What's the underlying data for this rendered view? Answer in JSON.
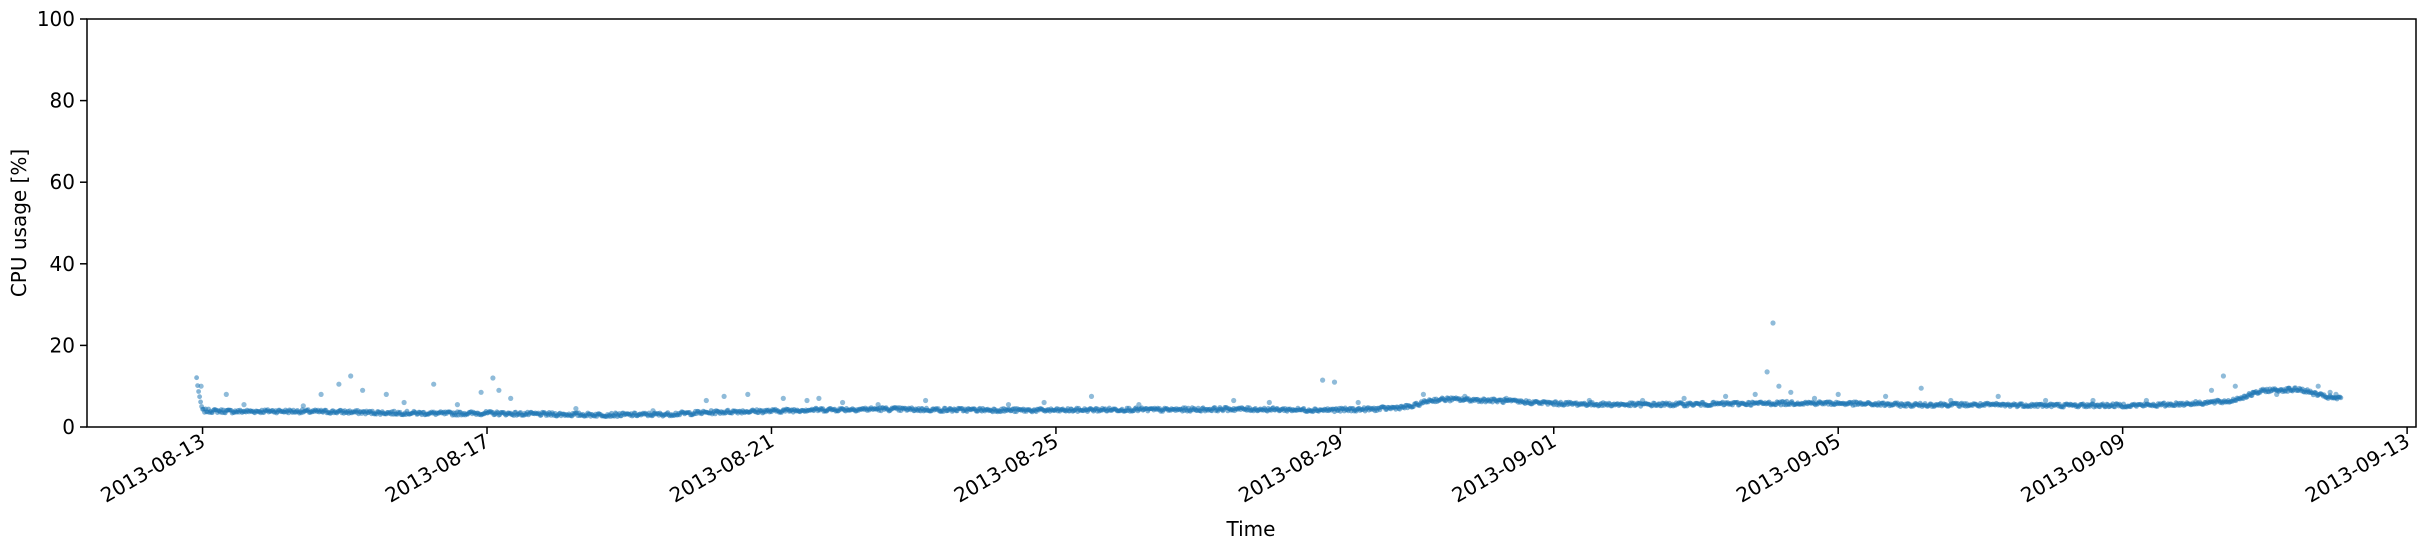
{
  "chart_data": {
    "type": "scatter",
    "title": "",
    "xlabel": "Time",
    "ylabel": "CPU usage [%]",
    "x_axis": {
      "kind": "date",
      "range": [
        "2013-08-11",
        "2013-09-13"
      ],
      "ticks": [
        "2013-08-13",
        "2013-08-17",
        "2013-08-21",
        "2013-08-25",
        "2013-08-29",
        "2013-09-01",
        "2013-09-05",
        "2013-09-09",
        "2013-09-13"
      ]
    },
    "y_axis": {
      "range": [
        0,
        100
      ],
      "ticks": [
        0,
        20,
        40,
        60,
        80,
        100
      ]
    },
    "grid": false,
    "legend": "none",
    "colors": {
      "series": "#1f77b4",
      "axis": "#000000"
    },
    "series": [
      {
        "baseline": [
          [
            "2013-08-12 22:00",
            12.0
          ],
          [
            "2013-08-12 23:00",
            7.0
          ],
          [
            "2013-08-13 00:00",
            4.0
          ],
          [
            "2013-08-13 12:00",
            3.8
          ],
          [
            "2013-08-14 00:00",
            3.9
          ],
          [
            "2013-08-14 12:00",
            3.8
          ],
          [
            "2013-08-15 00:00",
            3.7
          ],
          [
            "2013-08-15 12:00",
            3.5
          ],
          [
            "2013-08-16 00:00",
            3.4
          ],
          [
            "2013-08-16 12:00",
            3.3
          ],
          [
            "2013-08-17 00:00",
            3.4
          ],
          [
            "2013-08-17 12:00",
            3.2
          ],
          [
            "2013-08-18 00:00",
            3.1
          ],
          [
            "2013-08-18 12:00",
            3.0
          ],
          [
            "2013-08-19 00:00",
            3.0
          ],
          [
            "2013-08-19 12:00",
            3.1
          ],
          [
            "2013-08-20 00:00",
            3.5
          ],
          [
            "2013-08-20 12:00",
            3.8
          ],
          [
            "2013-08-21 00:00",
            3.9
          ],
          [
            "2013-08-21 12:00",
            4.2
          ],
          [
            "2013-08-22 00:00",
            4.3
          ],
          [
            "2013-08-22 12:00",
            4.4
          ],
          [
            "2013-08-23 00:00",
            4.3
          ],
          [
            "2013-08-23 12:00",
            4.2
          ],
          [
            "2013-08-24 00:00",
            4.2
          ],
          [
            "2013-08-24 12:00",
            4.1
          ],
          [
            "2013-08-25 00:00",
            4.1
          ],
          [
            "2013-08-25 12:00",
            4.2
          ],
          [
            "2013-08-26 00:00",
            4.3
          ],
          [
            "2013-08-26 12:00",
            4.2
          ],
          [
            "2013-08-27 00:00",
            4.3
          ],
          [
            "2013-08-27 12:00",
            4.4
          ],
          [
            "2013-08-28 00:00",
            4.3
          ],
          [
            "2013-08-28 12:00",
            4.2
          ],
          [
            "2013-08-29 00:00",
            4.2
          ],
          [
            "2013-08-29 12:00",
            4.4
          ],
          [
            "2013-08-30 00:00",
            5.0
          ],
          [
            "2013-08-30 06:00",
            6.5
          ],
          [
            "2013-08-30 12:00",
            6.8
          ],
          [
            "2013-08-31 00:00",
            6.6
          ],
          [
            "2013-08-31 12:00",
            6.2
          ],
          [
            "2013-09-01 00:00",
            5.8
          ],
          [
            "2013-09-01 12:00",
            5.6
          ],
          [
            "2013-09-02 00:00",
            5.5
          ],
          [
            "2013-09-02 12:00",
            5.5
          ],
          [
            "2013-09-03 00:00",
            5.6
          ],
          [
            "2013-09-03 12:00",
            5.7
          ],
          [
            "2013-09-04 00:00",
            5.8
          ],
          [
            "2013-09-04 12:00",
            5.9
          ],
          [
            "2013-09-05 00:00",
            5.8
          ],
          [
            "2013-09-05 12:00",
            5.6
          ],
          [
            "2013-09-06 00:00",
            5.4
          ],
          [
            "2013-09-06 12:00",
            5.5
          ],
          [
            "2013-09-07 00:00",
            5.4
          ],
          [
            "2013-09-07 12:00",
            5.4
          ],
          [
            "2013-09-08 00:00",
            5.3
          ],
          [
            "2013-09-08 12:00",
            5.3
          ],
          [
            "2013-09-09 00:00",
            5.3
          ],
          [
            "2013-09-09 12:00",
            5.4
          ],
          [
            "2013-09-10 00:00",
            5.8
          ],
          [
            "2013-09-10 12:00",
            6.3
          ],
          [
            "2013-09-11 00:00",
            9.0
          ],
          [
            "2013-09-11 12:00",
            9.2
          ],
          [
            "2013-09-11 20:00",
            7.5
          ],
          [
            "2013-09-12 00:00",
            7.0
          ],
          [
            "2013-09-12 02:00",
            7.0
          ]
        ],
        "outliers": [
          [
            "2013-08-12 23:30",
            10.0
          ],
          [
            "2013-08-13 08:00",
            8.0
          ],
          [
            "2013-08-13 14:00",
            5.5
          ],
          [
            "2013-08-14 10:00",
            5.2
          ],
          [
            "2013-08-14 16:00",
            8.0
          ],
          [
            "2013-08-14 22:00",
            10.5
          ],
          [
            "2013-08-15 02:00",
            12.5
          ],
          [
            "2013-08-15 06:00",
            9.0
          ],
          [
            "2013-08-15 14:00",
            8.0
          ],
          [
            "2013-08-15 20:00",
            6.0
          ],
          [
            "2013-08-16 06:00",
            10.5
          ],
          [
            "2013-08-16 14:00",
            5.5
          ],
          [
            "2013-08-16 22:00",
            8.5
          ],
          [
            "2013-08-17 02:00",
            12.0
          ],
          [
            "2013-08-17 04:00",
            9.0
          ],
          [
            "2013-08-17 08:00",
            7.0
          ],
          [
            "2013-08-18 06:00",
            4.5
          ],
          [
            "2013-08-19 08:00",
            4.0
          ],
          [
            "2013-08-20 02:00",
            6.5
          ],
          [
            "2013-08-20 08:00",
            7.5
          ],
          [
            "2013-08-20 16:00",
            8.0
          ],
          [
            "2013-08-21 04:00",
            7.0
          ],
          [
            "2013-08-21 12:00",
            6.5
          ],
          [
            "2013-08-21 16:00",
            7.0
          ],
          [
            "2013-08-22 00:00",
            6.0
          ],
          [
            "2013-08-22 12:00",
            5.5
          ],
          [
            "2013-08-23 04:00",
            6.5
          ],
          [
            "2013-08-24 08:00",
            5.5
          ],
          [
            "2013-08-24 20:00",
            6.0
          ],
          [
            "2013-08-25 12:00",
            7.5
          ],
          [
            "2013-08-26 04:00",
            5.5
          ],
          [
            "2013-08-27 12:00",
            6.5
          ],
          [
            "2013-08-28 00:00",
            6.0
          ],
          [
            "2013-08-28 18:00",
            11.5
          ],
          [
            "2013-08-28 22:00",
            11.0
          ],
          [
            "2013-08-29 06:00",
            6.0
          ],
          [
            "2013-08-30 04:00",
            8.0
          ],
          [
            "2013-08-30 18:00",
            7.5
          ],
          [
            "2013-08-31 08:00",
            7.0
          ],
          [
            "2013-09-01 12:00",
            6.5
          ],
          [
            "2013-09-02 06:00",
            6.5
          ],
          [
            "2013-09-02 20:00",
            7.0
          ],
          [
            "2013-09-03 10:00",
            7.5
          ],
          [
            "2013-09-03 20:00",
            8.0
          ],
          [
            "2013-09-04 02:00",
            25.5
          ],
          [
            "2013-09-04 00:00",
            13.5
          ],
          [
            "2013-09-04 04:00",
            10.0
          ],
          [
            "2013-09-04 08:00",
            8.5
          ],
          [
            "2013-09-04 16:00",
            7.0
          ],
          [
            "2013-09-05 00:00",
            8.0
          ],
          [
            "2013-09-05 16:00",
            7.5
          ],
          [
            "2013-09-06 04:00",
            9.5
          ],
          [
            "2013-09-06 14:00",
            6.5
          ],
          [
            "2013-09-07 06:00",
            7.5
          ],
          [
            "2013-09-07 22:00",
            6.5
          ],
          [
            "2013-09-08 14:00",
            6.5
          ],
          [
            "2013-09-09 08:00",
            6.5
          ],
          [
            "2013-09-10 06:00",
            9.0
          ],
          [
            "2013-09-10 10:00",
            12.5
          ],
          [
            "2013-09-10 14:00",
            10.0
          ],
          [
            "2013-09-10 20:00",
            8.5
          ],
          [
            "2013-09-11 04:00",
            8.0
          ],
          [
            "2013-09-11 08:00",
            9.5
          ],
          [
            "2013-09-11 18:00",
            10.0
          ],
          [
            "2013-09-11 22:00",
            8.5
          ],
          [
            "2013-09-12 00:00",
            8.0
          ]
        ]
      }
    ]
  }
}
